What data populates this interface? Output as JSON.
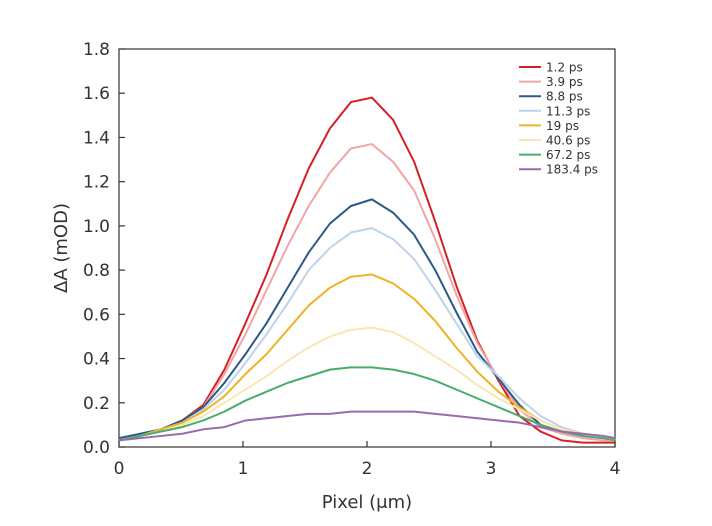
{
  "chart_data": {
    "type": "line",
    "xlabel": "Pixel (μm)",
    "ylabel": "ΔA (mOD)",
    "xlim": [
      0,
      4
    ],
    "ylim": [
      0,
      1.8
    ],
    "xticks": [
      "0",
      "1",
      "2",
      "3",
      "4"
    ],
    "yticks": [
      "0.0",
      "0.2",
      "0.4",
      "0.6",
      "0.8",
      "1.0",
      "1.2",
      "1.4",
      "1.6",
      "1.8"
    ],
    "grid": false,
    "legend_position": "top-right",
    "x": [
      0,
      0.17,
      0.34,
      0.51,
      0.68,
      0.85,
      1.02,
      1.19,
      1.36,
      1.53,
      1.7,
      1.87,
      2.04,
      2.21,
      2.38,
      2.55,
      2.72,
      2.89,
      3.06,
      3.23,
      3.4,
      3.57,
      3.74,
      3.91,
      4.0
    ],
    "series": [
      {
        "name": "1.2 ps",
        "color": "#d42026",
        "values": [
          0.03,
          0.05,
          0.08,
          0.12,
          0.19,
          0.35,
          0.56,
          0.78,
          1.03,
          1.26,
          1.44,
          1.56,
          1.58,
          1.48,
          1.29,
          1.02,
          0.73,
          0.48,
          0.3,
          0.14,
          0.07,
          0.03,
          0.02,
          0.02,
          0.02
        ]
      },
      {
        "name": "3.9 ps",
        "color": "#f2a5a5",
        "values": [
          0.03,
          0.05,
          0.08,
          0.12,
          0.18,
          0.33,
          0.51,
          0.71,
          0.91,
          1.09,
          1.24,
          1.35,
          1.37,
          1.29,
          1.16,
          0.94,
          0.69,
          0.47,
          0.31,
          0.17,
          0.09,
          0.06,
          0.04,
          0.03,
          0.03
        ]
      },
      {
        "name": "8.8 ps",
        "color": "#2b5a8a",
        "values": [
          0.04,
          0.06,
          0.08,
          0.12,
          0.18,
          0.29,
          0.42,
          0.56,
          0.72,
          0.88,
          1.01,
          1.09,
          1.12,
          1.06,
          0.96,
          0.8,
          0.61,
          0.43,
          0.31,
          0.19,
          0.1,
          0.07,
          0.05,
          0.04,
          0.03
        ]
      },
      {
        "name": "11.3 ps",
        "color": "#bcd3ea",
        "values": [
          0.03,
          0.05,
          0.08,
          0.11,
          0.17,
          0.26,
          0.38,
          0.51,
          0.65,
          0.8,
          0.9,
          0.97,
          0.99,
          0.94,
          0.85,
          0.71,
          0.56,
          0.41,
          0.32,
          0.22,
          0.14,
          0.09,
          0.06,
          0.04,
          0.03
        ]
      },
      {
        "name": "19 ps",
        "color": "#eeb421",
        "values": [
          0.03,
          0.05,
          0.08,
          0.11,
          0.16,
          0.23,
          0.33,
          0.42,
          0.53,
          0.64,
          0.72,
          0.77,
          0.78,
          0.74,
          0.67,
          0.57,
          0.45,
          0.34,
          0.25,
          0.18,
          0.12,
          0.08,
          0.06,
          0.04,
          0.03
        ]
      },
      {
        "name": "40.6 ps",
        "color": "#f8e7b4",
        "values": [
          0.03,
          0.05,
          0.07,
          0.1,
          0.14,
          0.2,
          0.26,
          0.32,
          0.39,
          0.45,
          0.5,
          0.53,
          0.54,
          0.52,
          0.47,
          0.41,
          0.35,
          0.28,
          0.22,
          0.17,
          0.12,
          0.08,
          0.06,
          0.04,
          0.03
        ]
      },
      {
        "name": "67.2 ps",
        "color": "#48ad6b",
        "values": [
          0.03,
          0.05,
          0.07,
          0.09,
          0.12,
          0.16,
          0.21,
          0.25,
          0.29,
          0.32,
          0.35,
          0.36,
          0.36,
          0.35,
          0.33,
          0.3,
          0.26,
          0.22,
          0.18,
          0.14,
          0.1,
          0.07,
          0.05,
          0.04,
          0.03
        ]
      },
      {
        "name": "183.4 ps",
        "color": "#9b6aad",
        "values": [
          0.03,
          0.04,
          0.05,
          0.06,
          0.08,
          0.09,
          0.12,
          0.13,
          0.14,
          0.15,
          0.15,
          0.16,
          0.16,
          0.16,
          0.16,
          0.15,
          0.14,
          0.13,
          0.12,
          0.11,
          0.09,
          0.07,
          0.06,
          0.05,
          0.04
        ]
      }
    ]
  }
}
